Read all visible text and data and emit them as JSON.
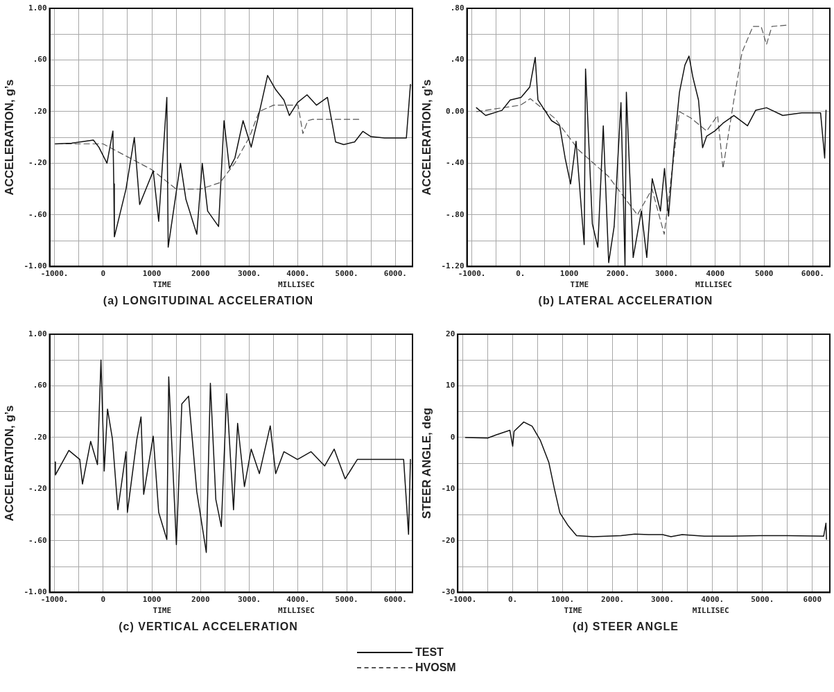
{
  "chart_data": [
    {
      "type": "line",
      "title": "(a)  LONGITUDINAL ACCELERATION",
      "xlabel": "TIME",
      "ylabel": "ACCELERATION, g’s",
      "annotations": [
        "MILLISEC"
      ],
      "legend": "bottom",
      "grid": true,
      "marker": "none",
      "xlim": [
        -1100,
        6350
      ],
      "xticks": [
        {
          "value": -1000,
          "label": "-1000."
        },
        {
          "value": -500,
          "label": null
        },
        {
          "value": 0,
          "label": "0"
        },
        {
          "value": 500,
          "label": null
        },
        {
          "value": 1000,
          "label": "1000"
        },
        {
          "value": 1500,
          "label": null
        },
        {
          "value": 2000,
          "label": "2000"
        },
        {
          "value": 2500,
          "label": null
        },
        {
          "value": 3000,
          "label": "3000."
        },
        {
          "value": 3500,
          "label": null
        },
        {
          "value": 4000,
          "label": "4000."
        },
        {
          "value": 4500,
          "label": null
        },
        {
          "value": 5000,
          "label": "5000."
        },
        {
          "value": 5500,
          "label": null
        },
        {
          "value": 6000,
          "label": "6000."
        }
      ],
      "ylim": [
        -1,
        1
      ],
      "yticks": [
        {
          "value": 1,
          "label": "1.00"
        },
        {
          "value": 0.8,
          "label": null
        },
        {
          "value": 0.6,
          "label": ".60"
        },
        {
          "value": 0.4,
          "label": null
        },
        {
          "value": 0.2,
          "label": ".20"
        },
        {
          "value": 0,
          "label": null
        },
        {
          "value": -0.2,
          "label": "-.20"
        },
        {
          "value": -0.4,
          "label": null
        },
        {
          "value": -0.6,
          "label": "-.60"
        },
        {
          "value": -0.8,
          "label": null
        },
        {
          "value": -1,
          "label": "-1.00"
        }
      ],
      "series": [
        {
          "name": "TEST",
          "color": "#111111",
          "line_style": "solid",
          "x": [
            -983,
            -648,
            -201,
            -89,
            78,
            200,
            218,
            230,
            469,
            640,
            749,
            1028,
            1140,
            1307,
            1335,
            1587,
            1699,
            1922,
            2034,
            2145,
            2369,
            2481,
            2592,
            2704,
            2872,
            3039,
            3179,
            3263,
            3375,
            3542,
            3710,
            3822,
            3989,
            4185,
            4380,
            4604,
            4771,
            4939,
            5162,
            5330,
            5497,
            5777,
            6224,
            6308
          ],
          "values": [
            -0.05,
            -0.045,
            -0.02,
            -0.075,
            -0.2,
            0.05,
            -0.36,
            -0.77,
            -0.4,
            0.0,
            -0.52,
            -0.26,
            -0.65,
            0.31,
            -0.85,
            -0.2,
            -0.48,
            -0.75,
            -0.2,
            -0.57,
            -0.69,
            0.13,
            -0.24,
            -0.16,
            0.13,
            -0.075,
            0.15,
            0.29,
            0.48,
            0.37,
            0.29,
            0.17,
            0.27,
            0.33,
            0.25,
            0.31,
            -0.035,
            -0.055,
            -0.035,
            0.047,
            0.006,
            -0.004,
            -0.004,
            0.41
          ]
        },
        {
          "name": "HVOSM",
          "color": "#555555",
          "line_style": "dashed",
          "x": [
            -950,
            0,
            500,
            1000,
            1500,
            2000,
            2400,
            2700,
            3000,
            3200,
            3500,
            4000,
            4100,
            4200,
            4300,
            5270
          ],
          "values": [
            -0.05,
            -0.05,
            -0.15,
            -0.25,
            -0.4,
            -0.4,
            -0.35,
            -0.2,
            0.0,
            0.2,
            0.25,
            0.25,
            0.03,
            0.13,
            0.14,
            0.14
          ]
        }
      ]
    },
    {
      "type": "line",
      "title": "(b)  LATERAL ACCELERATION",
      "xlabel": "TIME",
      "ylabel": "ACCELERATION, g’s",
      "annotations": [
        "MILLISEC"
      ],
      "grid": true,
      "marker": "none",
      "xlim": [
        -1100,
        6350
      ],
      "xticks": [
        {
          "value": -1000,
          "label": "-1000."
        },
        {
          "value": -500,
          "label": null
        },
        {
          "value": 0,
          "label": "0."
        },
        {
          "value": 500,
          "label": null
        },
        {
          "value": 1000,
          "label": "1000"
        },
        {
          "value": 1500,
          "label": null
        },
        {
          "value": 2000,
          "label": "2000."
        },
        {
          "value": 2500,
          "label": null
        },
        {
          "value": 3000,
          "label": "3000."
        },
        {
          "value": 3500,
          "label": null
        },
        {
          "value": 4000,
          "label": "4000"
        },
        {
          "value": 4500,
          "label": null
        },
        {
          "value": 5000,
          "label": "5000"
        },
        {
          "value": 5500,
          "label": null
        },
        {
          "value": 6000,
          "label": "6000."
        }
      ],
      "ylim": [
        -1.2,
        0.8
      ],
      "yticks": [
        {
          "value": 0.8,
          "label": ".80"
        },
        {
          "value": 0.6,
          "label": null
        },
        {
          "value": 0.4,
          "label": ".40"
        },
        {
          "value": 0.2,
          "label": null
        },
        {
          "value": 0,
          "label": "0.00"
        },
        {
          "value": -0.2,
          "label": null
        },
        {
          "value": -0.4,
          "label": "-.40"
        },
        {
          "value": -0.6,
          "label": null
        },
        {
          "value": -0.8,
          "label": "-.80"
        },
        {
          "value": -1,
          "label": null
        },
        {
          "value": -1.2,
          "label": "-1.20"
        }
      ],
      "series": [
        {
          "color": "#111111",
          "line_style": "solid",
          "x": [
            -905,
            -715,
            -380,
            -212,
            11,
            190,
            302,
            358,
            637,
            805,
            916,
            1028,
            1140,
            1307,
            1335,
            1475,
            1587,
            1699,
            1810,
            1922,
            2062,
            2145,
            2173,
            2313,
            2481,
            2592,
            2704,
            2872,
            2956,
            3039,
            3151,
            3263,
            3375,
            3459,
            3542,
            3654,
            3738,
            3822,
            3989,
            4157,
            4380,
            4660,
            4827,
            5050,
            5383,
            5772,
            6160,
            6244,
            6272
          ],
          "values": [
            0.03,
            -0.03,
            0.01,
            0.09,
            0.11,
            0.19,
            0.42,
            0.09,
            -0.07,
            -0.11,
            -0.36,
            -0.56,
            -0.23,
            -1.03,
            0.33,
            -0.87,
            -1.05,
            -0.11,
            -1.17,
            -0.89,
            0.07,
            -1.19,
            0.15,
            -1.13,
            -0.77,
            -1.13,
            -0.52,
            -0.77,
            -0.44,
            -0.81,
            -0.28,
            0.15,
            0.36,
            0.43,
            0.26,
            0.09,
            -0.28,
            -0.19,
            -0.15,
            -0.09,
            -0.03,
            -0.11,
            0.01,
            0.03,
            -0.03,
            -0.01,
            -0.01,
            -0.36,
            0.01
          ]
        },
        {
          "color": "#555555",
          "line_style": "dashed",
          "x": [
            -900,
            0,
            200,
            700,
            1200,
            1800,
            2400,
            2700,
            2950,
            3200,
            3263,
            3500,
            3822,
            4046,
            4157,
            4380,
            4548,
            4771,
            4939,
            5050,
            5161,
            5494
          ],
          "values": [
            0.0,
            0.05,
            0.1,
            -0.05,
            -0.3,
            -0.5,
            -0.8,
            -0.6,
            -0.95,
            -0.19,
            0.0,
            -0.05,
            -0.15,
            -0.03,
            -0.44,
            0.09,
            0.46,
            0.66,
            0.66,
            0.52,
            0.66,
            0.67
          ]
        }
      ]
    },
    {
      "type": "line",
      "title": "(c)  VERTICAL ACCELERATION",
      "xlabel": "TIME",
      "ylabel": "ACCELERATION, g’s",
      "annotations": [
        "MILLISEC"
      ],
      "grid": true,
      "marker": "none",
      "xlim": [
        -1100,
        6350
      ],
      "xticks": [
        {
          "value": -1000,
          "label": "-1000."
        },
        {
          "value": -500,
          "label": null
        },
        {
          "value": 0,
          "label": "0"
        },
        {
          "value": 500,
          "label": null
        },
        {
          "value": 1000,
          "label": "1000"
        },
        {
          "value": 1500,
          "label": null
        },
        {
          "value": 2000,
          "label": "2000"
        },
        {
          "value": 2500,
          "label": null
        },
        {
          "value": 3000,
          "label": "3000."
        },
        {
          "value": 3500,
          "label": null
        },
        {
          "value": 4000,
          "label": "4000."
        },
        {
          "value": 4500,
          "label": null
        },
        {
          "value": 5000,
          "label": "5000."
        },
        {
          "value": 5500,
          "label": null
        },
        {
          "value": 6000,
          "label": "6000."
        }
      ],
      "ylim": [
        -1,
        1
      ],
      "yticks": [
        {
          "value": 1,
          "label": "1.00"
        },
        {
          "value": 0.8,
          "label": null
        },
        {
          "value": 0.6,
          "label": ".60"
        },
        {
          "value": 0.4,
          "label": null
        },
        {
          "value": 0.2,
          "label": ".20"
        },
        {
          "value": 0,
          "label": null
        },
        {
          "value": -0.2,
          "label": "-.20"
        },
        {
          "value": -0.4,
          "label": null
        },
        {
          "value": -0.6,
          "label": "-.60"
        },
        {
          "value": -0.8,
          "label": null
        },
        {
          "value": -1,
          "label": "-1.00"
        }
      ],
      "series": [
        {
          "color": "#111111",
          "line_style": "solid",
          "x": [
            -983,
            -980,
            -704,
            -480,
            -425,
            -257,
            -117,
            -45,
            22,
            89,
            190,
            302,
            469,
            497,
            693,
            777,
            832,
            1028,
            1140,
            1307,
            1346,
            1503,
            1615,
            1754,
            1922,
            2117,
            2201,
            2313,
            2425,
            2536,
            2676,
            2760,
            2900,
            3039,
            3207,
            3430,
            3542,
            3710,
            3989,
            4268,
            4548,
            4743,
            4967,
            5218,
            5609,
            6168,
            6269,
            6308
          ],
          "values": [
            0.01,
            -0.09,
            0.1,
            0.03,
            -0.16,
            0.17,
            -0.01,
            0.8,
            -0.06,
            0.42,
            0.19,
            -0.36,
            0.09,
            -0.38,
            0.19,
            0.36,
            -0.24,
            0.21,
            -0.38,
            -0.59,
            0.67,
            -0.63,
            0.46,
            0.52,
            -0.22,
            -0.69,
            0.62,
            -0.28,
            -0.49,
            0.54,
            -0.36,
            0.31,
            -0.18,
            0.11,
            -0.08,
            0.29,
            -0.08,
            0.09,
            0.03,
            0.09,
            -0.02,
            0.11,
            -0.12,
            0.03,
            0.03,
            0.03,
            -0.55,
            0.03
          ]
        }
      ]
    },
    {
      "type": "line",
      "title": "(d)  STEER ANGLE",
      "xlabel": "TIME",
      "ylabel": "STEER ANGLE, deg",
      "annotations": [
        "MILLISEC"
      ],
      "grid": true,
      "marker": "none",
      "xlim": [
        -1100,
        6350
      ],
      "xticks": [
        {
          "value": -1000,
          "label": "-1000."
        },
        {
          "value": -500,
          "label": null
        },
        {
          "value": 0,
          "label": "0."
        },
        {
          "value": 500,
          "label": null
        },
        {
          "value": 1000,
          "label": "1000."
        },
        {
          "value": 1500,
          "label": null
        },
        {
          "value": 2000,
          "label": "2000."
        },
        {
          "value": 2500,
          "label": null
        },
        {
          "value": 3000,
          "label": "3000."
        },
        {
          "value": 3500,
          "label": null
        },
        {
          "value": 4000,
          "label": "4000."
        },
        {
          "value": 4500,
          "label": null
        },
        {
          "value": 5000,
          "label": "5000."
        },
        {
          "value": 5500,
          "label": null
        },
        {
          "value": 6000,
          "label": "6000"
        }
      ],
      "ylim": [
        -30,
        20
      ],
      "yticks": [
        {
          "value": 20,
          "label": "20"
        },
        {
          "value": 15,
          "label": null
        },
        {
          "value": 10,
          "label": "10"
        },
        {
          "value": 5,
          "label": null
        },
        {
          "value": 0,
          "label": "0"
        },
        {
          "value": -5,
          "label": null
        },
        {
          "value": -10,
          "label": "-10"
        },
        {
          "value": -15,
          "label": null
        },
        {
          "value": -20,
          "label": "-20"
        },
        {
          "value": -25,
          "label": null
        },
        {
          "value": -30,
          "label": "-30"
        }
      ],
      "series": [
        {
          "color": "#111111",
          "line_style": "solid",
          "x": [
            -945,
            -500,
            -334,
            -56,
            0,
            28,
            222,
            389,
            556,
            723,
            834,
            945,
            1112,
            1279,
            1612,
            2168,
            2446,
            2724,
            3002,
            3169,
            3392,
            3836,
            4392,
            4948,
            5504,
            6227,
            6272,
            6283
          ],
          "values": [
            0,
            -0.1,
            0.5,
            1.4,
            -1.7,
            1.2,
            3.0,
            2.2,
            -0.6,
            -4.8,
            -9.9,
            -14.6,
            -17.1,
            -19.0,
            -19.2,
            -19.0,
            -18.7,
            -18.8,
            -18.8,
            -19.2,
            -18.8,
            -19.1,
            -19.1,
            -19.0,
            -19.0,
            -19.1,
            -16.6,
            -19.7
          ]
        }
      ]
    }
  ]
}
